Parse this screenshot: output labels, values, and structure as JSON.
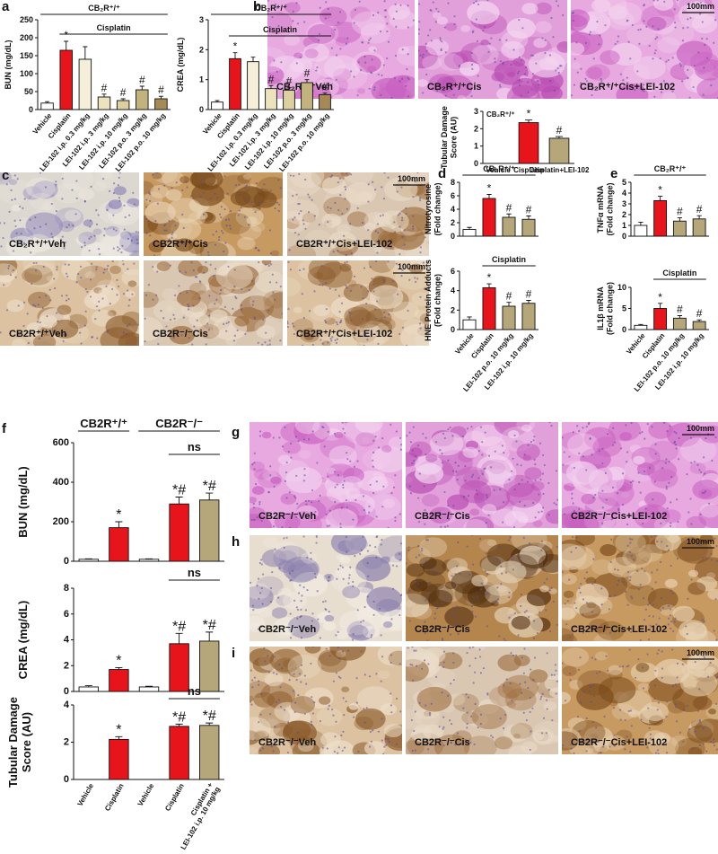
{
  "panel_labels": [
    "a",
    "b",
    "c",
    "d",
    "e",
    "f",
    "g",
    "h",
    "i"
  ],
  "chart_data": [
    {
      "type": "bar",
      "y_label": "BUN (mg/dL)",
      "group_labels": [
        "CB₂R⁺/⁺",
        "Cisplatin"
      ],
      "categories": [
        "Vehicle",
        "Cisplatin",
        "LEI-102 i.p. 0.3 mg/kg",
        "LEI-102 i.p. 3 mg/kg",
        "LEI-102 i.p. 10 mg/kg",
        "LEI-102 p.o. 3 mg/kg",
        "LEI-102 p.o. 10 mg/kg"
      ],
      "values": [
        18,
        165,
        140,
        35,
        25,
        55,
        30
      ],
      "errors": [
        4,
        25,
        35,
        8,
        5,
        10,
        7
      ],
      "significance": [
        null,
        "*",
        null,
        "#",
        "#",
        "#",
        "#"
      ],
      "colors": [
        "#ffffff",
        "#e8141c",
        "#f5efd9",
        "#ece2bd",
        "#ddd0a0",
        "#c2b27e",
        "#a58a57"
      ],
      "ylim": [
        0,
        250
      ],
      "yticks": [
        0,
        50,
        100,
        150,
        200,
        250
      ]
    },
    {
      "type": "bar",
      "y_label": "CREA (mg/dL)",
      "group_labels": [
        "CB₂R⁺/⁺",
        "Cisplatin"
      ],
      "categories": [
        "Vehicle",
        "Cisplatin",
        "LEI-102 i.p. 0.3 mg/kg",
        "LEI-102 i.p. 3 mg/kg",
        "LEI-102 i.p. 10 mg/kg",
        "LEI-102 p.o. 3 mg/kg",
        "LEI-102 p.o. 10 mg/kg"
      ],
      "values": [
        0.25,
        1.7,
        1.6,
        0.7,
        0.65,
        0.9,
        0.5
      ],
      "errors": [
        0.05,
        0.2,
        0.15,
        0.1,
        0.08,
        0.1,
        0.05
      ],
      "significance": [
        null,
        "*",
        null,
        "#",
        "#",
        "#",
        "#"
      ],
      "colors": [
        "#ffffff",
        "#e8141c",
        "#f5efd9",
        "#ece2bd",
        "#ddd0a0",
        "#c2b27e",
        "#a58a57"
      ],
      "ylim": [
        0,
        3
      ],
      "yticks": [
        0,
        1,
        2,
        3
      ]
    },
    {
      "type": "bar",
      "y_label": "Tubular Damage\nScore (AU)",
      "group_labels": [
        "CB₂R⁺/⁺"
      ],
      "categories": [
        "Vehicle",
        "Cisplatin",
        "Cisplatin+LEI-102"
      ],
      "values": [
        0,
        2.35,
        1.45
      ],
      "errors": [
        0,
        0.15,
        0.1
      ],
      "significance": [
        null,
        "*",
        "#"
      ],
      "colors": [
        "#ffffff",
        "#e8141c",
        "#b5a77a"
      ],
      "ylim": [
        0,
        3
      ],
      "yticks": [
        0,
        1,
        2,
        3
      ]
    },
    {
      "type": "bar",
      "y_label": "Nitrotyrosine\n(Fold change)",
      "group_labels": [
        "CB₂R⁺/⁺"
      ],
      "categories": [
        null,
        null,
        null,
        null
      ],
      "values": [
        1,
        5.6,
        2.8,
        2.5
      ],
      "errors": [
        0.3,
        0.6,
        0.5,
        0.5
      ],
      "significance": [
        null,
        "*",
        "#",
        "#"
      ],
      "colors": [
        "#ffffff",
        "#e8141c",
        "#b5a77a",
        "#b5a77a"
      ],
      "ylim": [
        0,
        8
      ],
      "yticks": [
        0,
        2,
        4,
        6,
        8
      ]
    },
    {
      "type": "bar",
      "y_label": "HNE Protein Adducts\n(Fold change)",
      "group_labels": [
        "Cisplatin"
      ],
      "categories": [
        "Vehicle",
        "Cisplatin",
        "LEI-102 p.o. 10 mg/kg",
        "LEI-102 i.p. 10 mg/kg"
      ],
      "values": [
        1,
        4.3,
        2.4,
        2.7
      ],
      "errors": [
        0.3,
        0.4,
        0.4,
        0.3
      ],
      "significance": [
        null,
        "*",
        "#",
        "#"
      ],
      "colors": [
        "#ffffff",
        "#e8141c",
        "#b5a77a",
        "#b5a77a"
      ],
      "ylim": [
        0,
        6
      ],
      "yticks": [
        0,
        2,
        4,
        6
      ]
    },
    {
      "type": "bar",
      "y_label": "TNFα mRNA\n(Fold change)",
      "group_labels": [
        "CB₂R⁺/⁺"
      ],
      "categories": [
        null,
        null,
        null,
        null
      ],
      "values": [
        1,
        3.3,
        1.4,
        1.6
      ],
      "errors": [
        0.3,
        0.4,
        0.3,
        0.3
      ],
      "significance": [
        null,
        "*",
        "#",
        "#"
      ],
      "colors": [
        "#ffffff",
        "#e8141c",
        "#b5a77a",
        "#b5a77a"
      ],
      "ylim": [
        0,
        5
      ],
      "yticks": [
        0,
        1,
        2,
        3,
        4,
        5
      ]
    },
    {
      "type": "bar",
      "y_label": "IL1β mRNA\n(Fold change)",
      "group_labels": [
        "Cisplatin"
      ],
      "categories": [
        "Vehicle",
        "Cisplatin",
        "LEI-102 p.o. 10 mg/kg",
        "LEI-102 i.p. 10 mg/kg"
      ],
      "values": [
        1,
        5,
        2.7,
        1.9
      ],
      "errors": [
        0.2,
        1.2,
        0.6,
        0.4
      ],
      "significance": [
        null,
        "*",
        "#",
        "#"
      ],
      "colors": [
        "#ffffff",
        "#e8141c",
        "#b5a77a",
        "#b5a77a"
      ],
      "ylim": [
        0,
        10
      ],
      "yticks": [
        0,
        5,
        10
      ]
    },
    {
      "type": "bar",
      "y_label": "BUN (mg/dL)",
      "group_labels": [
        "CB2R⁺/⁺",
        "CB2R⁻/⁻",
        "ns"
      ],
      "categories": [
        null,
        null,
        null,
        null,
        null
      ],
      "values": [
        10,
        170,
        10,
        290,
        310
      ],
      "errors": [
        2,
        30,
        2,
        35,
        35
      ],
      "significance": [
        null,
        "*",
        null,
        "*#",
        "*#"
      ],
      "colors": [
        "#ffffff",
        "#e8141c",
        "#ffffff",
        "#e8141c",
        "#b5a77a"
      ],
      "ylim": [
        0,
        600
      ],
      "yticks": [
        0,
        200,
        400,
        600
      ]
    },
    {
      "type": "bar",
      "y_label": "CREA (mg/dL)",
      "group_labels": [
        "ns"
      ],
      "categories": [
        null,
        null,
        null,
        null,
        null
      ],
      "values": [
        0.35,
        1.7,
        0.35,
        3.7,
        3.9
      ],
      "errors": [
        0.1,
        0.15,
        0.05,
        0.8,
        0.7
      ],
      "significance": [
        null,
        "*",
        null,
        "*#",
        "*#"
      ],
      "colors": [
        "#ffffff",
        "#e8141c",
        "#ffffff",
        "#e8141c",
        "#b5a77a"
      ],
      "ylim": [
        0,
        8
      ],
      "yticks": [
        0,
        2,
        4,
        6,
        8
      ]
    },
    {
      "type": "bar",
      "y_label": "Tubular Damage\nScore (AU)",
      "group_labels": [
        "ns"
      ],
      "categories": [
        "Vehicle",
        "Cisplatin",
        "Vehicle",
        "Cisplatin",
        "Cisplatin +\nLEI-102 i.p. 10 mg/kg"
      ],
      "values": [
        0,
        2.15,
        0,
        2.85,
        2.9
      ],
      "errors": [
        0,
        0.15,
        0,
        0.12,
        0.13
      ],
      "significance": [
        null,
        "*",
        null,
        "*#",
        "*#"
      ],
      "colors": [
        "#ffffff",
        "#e8141c",
        "#ffffff",
        "#e8141c",
        "#b5a77a"
      ],
      "ylim": [
        0,
        4
      ],
      "yticks": [
        0,
        2,
        4
      ]
    }
  ],
  "histology": {
    "b": [
      {
        "caption": "CB₂R⁺/⁺Veh"
      },
      {
        "caption": "CB₂R⁺/⁺Cis"
      },
      {
        "caption": "CB₂R⁺/⁺Cis+LEI-102",
        "scale_bar": "100mm"
      }
    ],
    "c": [
      {
        "caption": "CB₂R⁺/⁺Veh"
      },
      {
        "caption": "CB2R⁺/⁺Cis"
      },
      {
        "caption": "CB2R⁺/⁺Cis+LEI-102",
        "scale_bar": "100mm"
      },
      {
        "caption": "CB2R⁺/⁺Veh"
      },
      {
        "caption": "CB2R⁻/⁻Cis"
      },
      {
        "caption": "CB2R⁺/⁺Cis+LEI-102",
        "scale_bar": "100mm"
      }
    ],
    "g": [
      {
        "caption": "CB2R⁻/⁻Veh"
      },
      {
        "caption": "CB2R⁻/⁻Cis"
      },
      {
        "caption": "CB2R⁻/⁻Cis+LEI-102",
        "scale_bar": "100mm"
      }
    ],
    "h": [
      {
        "caption": "CB2R⁻/⁻Veh"
      },
      {
        "caption": "CB2R⁻/⁻Cis"
      },
      {
        "caption": "CB2R⁻/⁻Cis+LEI-102",
        "scale_bar": "100mm"
      }
    ],
    "i": [
      {
        "caption": "CB2R⁻/⁻Veh"
      },
      {
        "caption": "CB2R⁻/⁻Cis"
      },
      {
        "caption": "CB2R⁻/⁻Cis+LEI-102",
        "scale_bar": "100mm"
      }
    ]
  }
}
